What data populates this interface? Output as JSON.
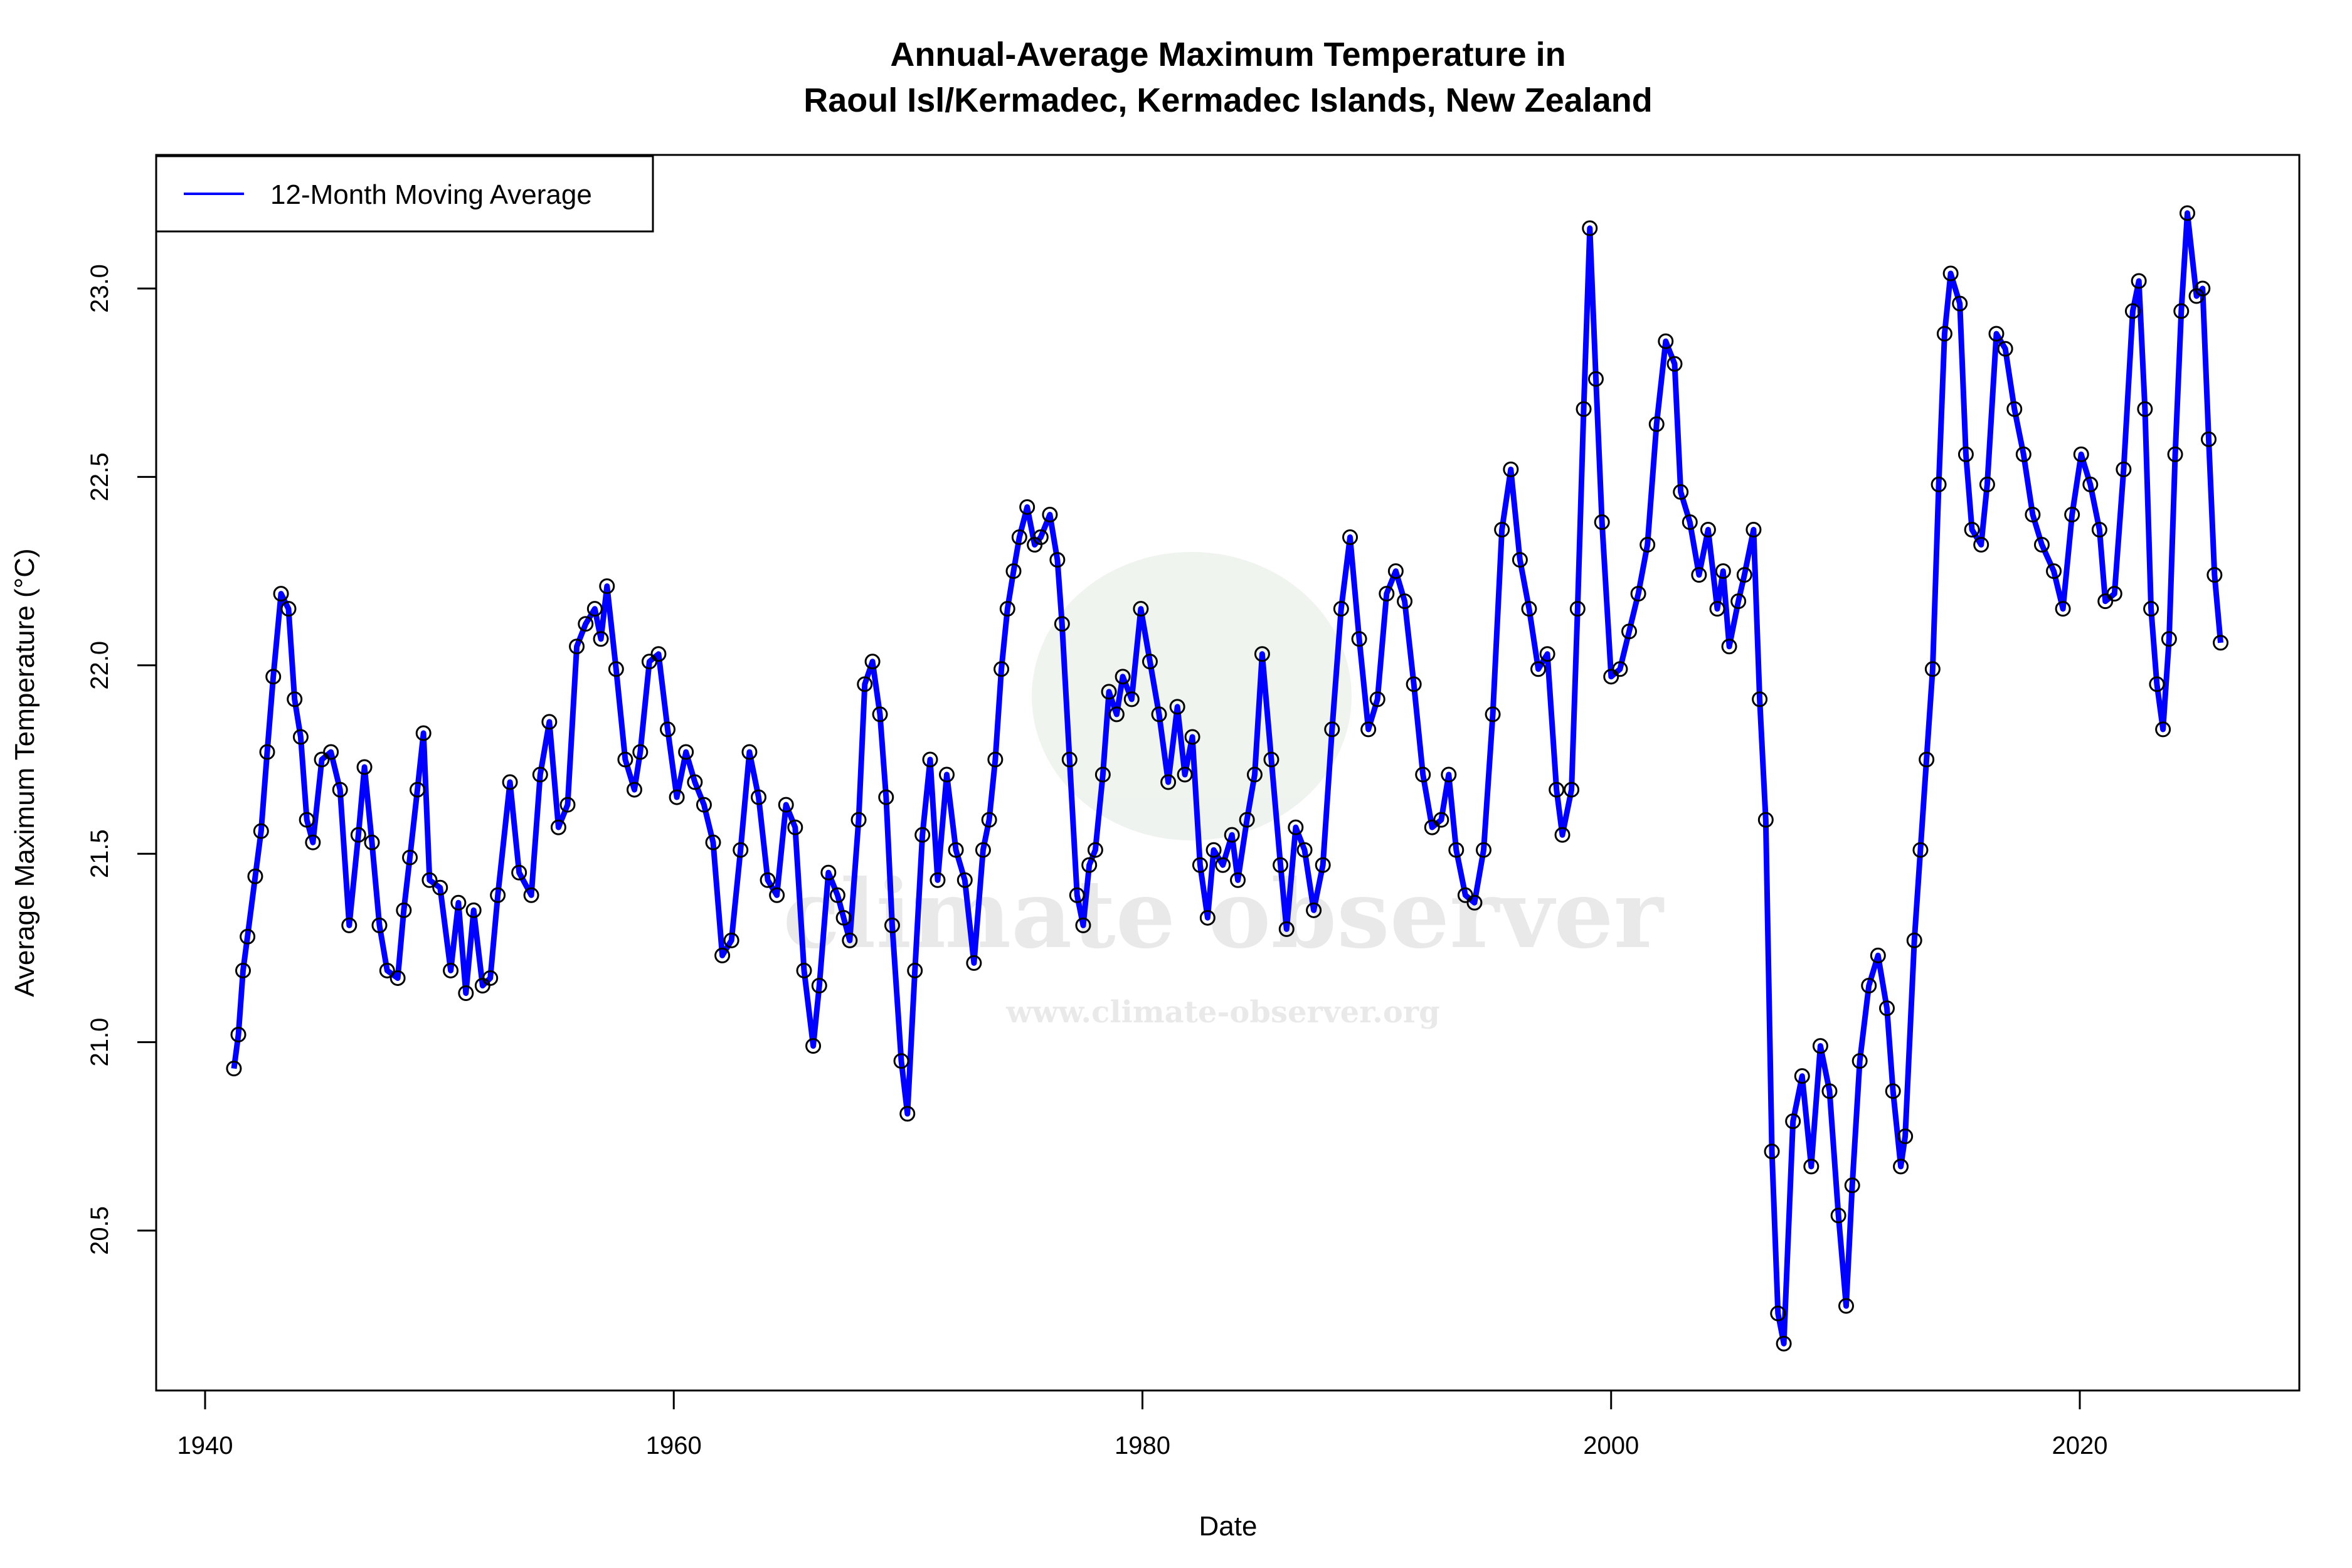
{
  "chart_data": {
    "type": "line",
    "title_line1": "Annual-Average Maximum Temperature in",
    "title_line2": "Raoul Isl/Kermadec, Kermadec Islands, New Zealand",
    "xlabel": "Date",
    "ylabel": "Average Maximum Temperature (°C)",
    "xlim": [
      1938.5,
      2029
    ],
    "ylim": [
      20.0,
      23.35
    ],
    "xticks": [
      1940,
      1960,
      1980,
      2000,
      2020
    ],
    "yticks": [
      20.5,
      21.0,
      21.5,
      22.0,
      22.5,
      23.0
    ],
    "grid": false,
    "legend": {
      "position": "top-left",
      "entries": [
        {
          "label": "12-Month Moving Average",
          "color": "#0000FF"
        }
      ]
    },
    "watermark": {
      "text": "climate observer",
      "url": "www.climate-observer.org"
    },
    "series": [
      {
        "name": "12-Month Moving Average",
        "color": "#0000FF",
        "marker_color": "#000000",
        "x": [
          1941.23,
          1941.42,
          1941.62,
          1941.81,
          1942.14,
          1942.39,
          1942.65,
          1942.91,
          1943.24,
          1943.56,
          1943.82,
          1944.08,
          1944.34,
          1944.6,
          1944.98,
          1945.37,
          1945.76,
          1946.15,
          1946.54,
          1946.8,
          1947.12,
          1947.44,
          1947.77,
          1948.22,
          1948.48,
          1948.74,
          1949.06,
          1949.32,
          1949.58,
          1950.03,
          1950.48,
          1950.81,
          1951.13,
          1951.46,
          1951.84,
          1952.17,
          1952.49,
          1953.01,
          1953.4,
          1953.92,
          1954.3,
          1954.69,
          1955.08,
          1955.47,
          1955.86,
          1956.24,
          1956.63,
          1956.89,
          1957.15,
          1957.54,
          1957.93,
          1958.32,
          1958.57,
          1958.96,
          1959.35,
          1959.74,
          1960.13,
          1960.52,
          1960.9,
          1961.29,
          1961.68,
          1962.07,
          1962.46,
          1962.85,
          1963.23,
          1963.62,
          1964.01,
          1964.4,
          1964.79,
          1965.18,
          1965.56,
          1965.95,
          1966.21,
          1966.6,
          1966.99,
          1967.25,
          1967.51,
          1967.89,
          1968.15,
          1968.48,
          1968.8,
          1969.06,
          1969.32,
          1969.71,
          1969.97,
          1970.29,
          1970.61,
          1970.94,
          1971.26,
          1971.65,
          1972.04,
          1972.42,
          1972.81,
          1973.2,
          1973.46,
          1973.72,
          1973.98,
          1974.24,
          1974.5,
          1974.75,
          1975.08,
          1975.4,
          1975.66,
          1976.05,
          1976.37,
          1976.57,
          1976.89,
          1977.21,
          1977.47,
          1977.73,
          1977.99,
          1978.31,
          1978.57,
          1978.9,
          1979.16,
          1979.54,
          1979.93,
          1980.32,
          1980.71,
          1981.1,
          1981.49,
          1981.81,
          1982.13,
          1982.46,
          1982.78,
          1983.04,
          1983.43,
          1983.82,
          1984.07,
          1984.46,
          1984.79,
          1985.11,
          1985.5,
          1985.89,
          1986.15,
          1986.54,
          1986.92,
          1987.31,
          1987.7,
          1988.09,
          1988.48,
          1988.86,
          1989.25,
          1989.64,
          1990.03,
          1990.42,
          1990.81,
          1991.19,
          1991.58,
          1991.97,
          1992.36,
          1992.75,
          1993.07,
          1993.39,
          1993.78,
          1994.17,
          1994.56,
          1994.95,
          1995.34,
          1995.72,
          1996.11,
          1996.5,
          1996.89,
          1997.28,
          1997.67,
          1997.92,
          1998.31,
          1998.57,
          1998.83,
          1999.09,
          1999.35,
          1999.61,
          2000.0,
          2000.38,
          2000.77,
          2001.16,
          2001.55,
          2001.94,
          2002.33,
          2002.71,
          2002.97,
          2003.36,
          2003.75,
          2004.14,
          2004.53,
          2004.78,
          2005.04,
          2005.43,
          2005.69,
          2006.08,
          2006.34,
          2006.6,
          2006.86,
          2007.12,
          2007.37,
          2007.76,
          2008.15,
          2008.54,
          2008.93,
          2009.32,
          2009.7,
          2010.03,
          2010.29,
          2010.61,
          2011.0,
          2011.39,
          2011.77,
          2012.03,
          2012.36,
          2012.55,
          2012.94,
          2013.2,
          2013.46,
          2013.72,
          2013.98,
          2014.23,
          2014.49,
          2014.88,
          2015.14,
          2015.4,
          2015.79,
          2016.05,
          2016.44,
          2016.82,
          2017.21,
          2017.6,
          2017.99,
          2018.38,
          2018.89,
          2019.28,
          2019.67,
          2020.06,
          2020.45,
          2020.84,
          2021.09,
          2021.48,
          2021.87,
          2022.26,
          2022.52,
          2022.78,
          2023.04,
          2023.29,
          2023.55,
          2023.81,
          2024.07,
          2024.33,
          2024.59,
          2024.98,
          2025.24,
          2025.5,
          2025.75,
          2026.01
        ],
        "y": [
          20.93,
          21.02,
          21.19,
          21.28,
          21.44,
          21.56,
          21.77,
          21.97,
          22.19,
          22.15,
          21.91,
          21.81,
          21.59,
          21.53,
          21.75,
          21.77,
          21.67,
          21.31,
          21.55,
          21.73,
          21.53,
          21.31,
          21.19,
          21.17,
          21.35,
          21.49,
          21.67,
          21.82,
          21.43,
          21.41,
          21.19,
          21.37,
          21.13,
          21.35,
          21.15,
          21.17,
          21.39,
          21.69,
          21.45,
          21.39,
          21.71,
          21.85,
          21.57,
          21.63,
          22.05,
          22.11,
          22.15,
          22.07,
          22.21,
          21.99,
          21.75,
          21.67,
          21.77,
          22.01,
          22.03,
          21.83,
          21.65,
          21.77,
          21.69,
          21.63,
          21.53,
          21.23,
          21.27,
          21.51,
          21.77,
          21.65,
          21.43,
          21.39,
          21.63,
          21.57,
          21.19,
          20.99,
          21.15,
          21.45,
          21.39,
          21.33,
          21.27,
          21.59,
          21.95,
          22.01,
          21.87,
          21.65,
          21.31,
          20.95,
          20.81,
          21.19,
          21.55,
          21.75,
          21.43,
          21.71,
          21.51,
          21.43,
          21.21,
          21.51,
          21.59,
          21.75,
          21.99,
          22.15,
          22.25,
          22.34,
          22.42,
          22.32,
          22.34,
          22.4,
          22.28,
          22.11,
          21.75,
          21.39,
          21.31,
          21.47,
          21.51,
          21.71,
          21.93,
          21.87,
          21.97,
          21.91,
          22.15,
          22.01,
          21.87,
          21.69,
          21.89,
          21.71,
          21.81,
          21.47,
          21.33,
          21.51,
          21.47,
          21.55,
          21.43,
          21.59,
          21.71,
          22.03,
          21.75,
          21.47,
          21.3,
          21.57,
          21.51,
          21.35,
          21.47,
          21.83,
          22.15,
          22.34,
          22.07,
          21.83,
          21.91,
          22.19,
          22.25,
          22.17,
          21.95,
          21.71,
          21.57,
          21.59,
          21.71,
          21.51,
          21.39,
          21.37,
          21.51,
          21.87,
          22.36,
          22.52,
          22.28,
          22.15,
          21.99,
          22.03,
          21.67,
          21.55,
          21.67,
          22.15,
          22.68,
          23.16,
          22.76,
          22.38,
          21.97,
          21.99,
          22.09,
          22.19,
          22.32,
          22.64,
          22.86,
          22.8,
          22.46,
          22.38,
          22.24,
          22.36,
          22.15,
          22.25,
          22.05,
          22.17,
          22.24,
          22.36,
          21.91,
          21.59,
          20.71,
          20.28,
          20.2,
          20.79,
          20.91,
          20.67,
          20.99,
          20.87,
          20.54,
          20.3,
          20.62,
          20.95,
          21.15,
          21.23,
          21.09,
          20.87,
          20.67,
          20.75,
          21.27,
          21.51,
          21.75,
          21.99,
          22.48,
          22.88,
          23.04,
          22.96,
          22.56,
          22.36,
          22.32,
          22.48,
          22.88,
          22.84,
          22.68,
          22.56,
          22.4,
          22.32,
          22.25,
          22.15,
          22.4,
          22.56,
          22.48,
          22.36,
          22.17,
          22.19,
          22.52,
          22.94,
          23.02,
          22.68,
          22.15,
          21.95,
          21.83,
          22.07,
          22.56,
          22.94,
          23.2,
          22.98,
          23.0,
          22.6,
          22.24,
          22.06
        ]
      }
    ]
  }
}
